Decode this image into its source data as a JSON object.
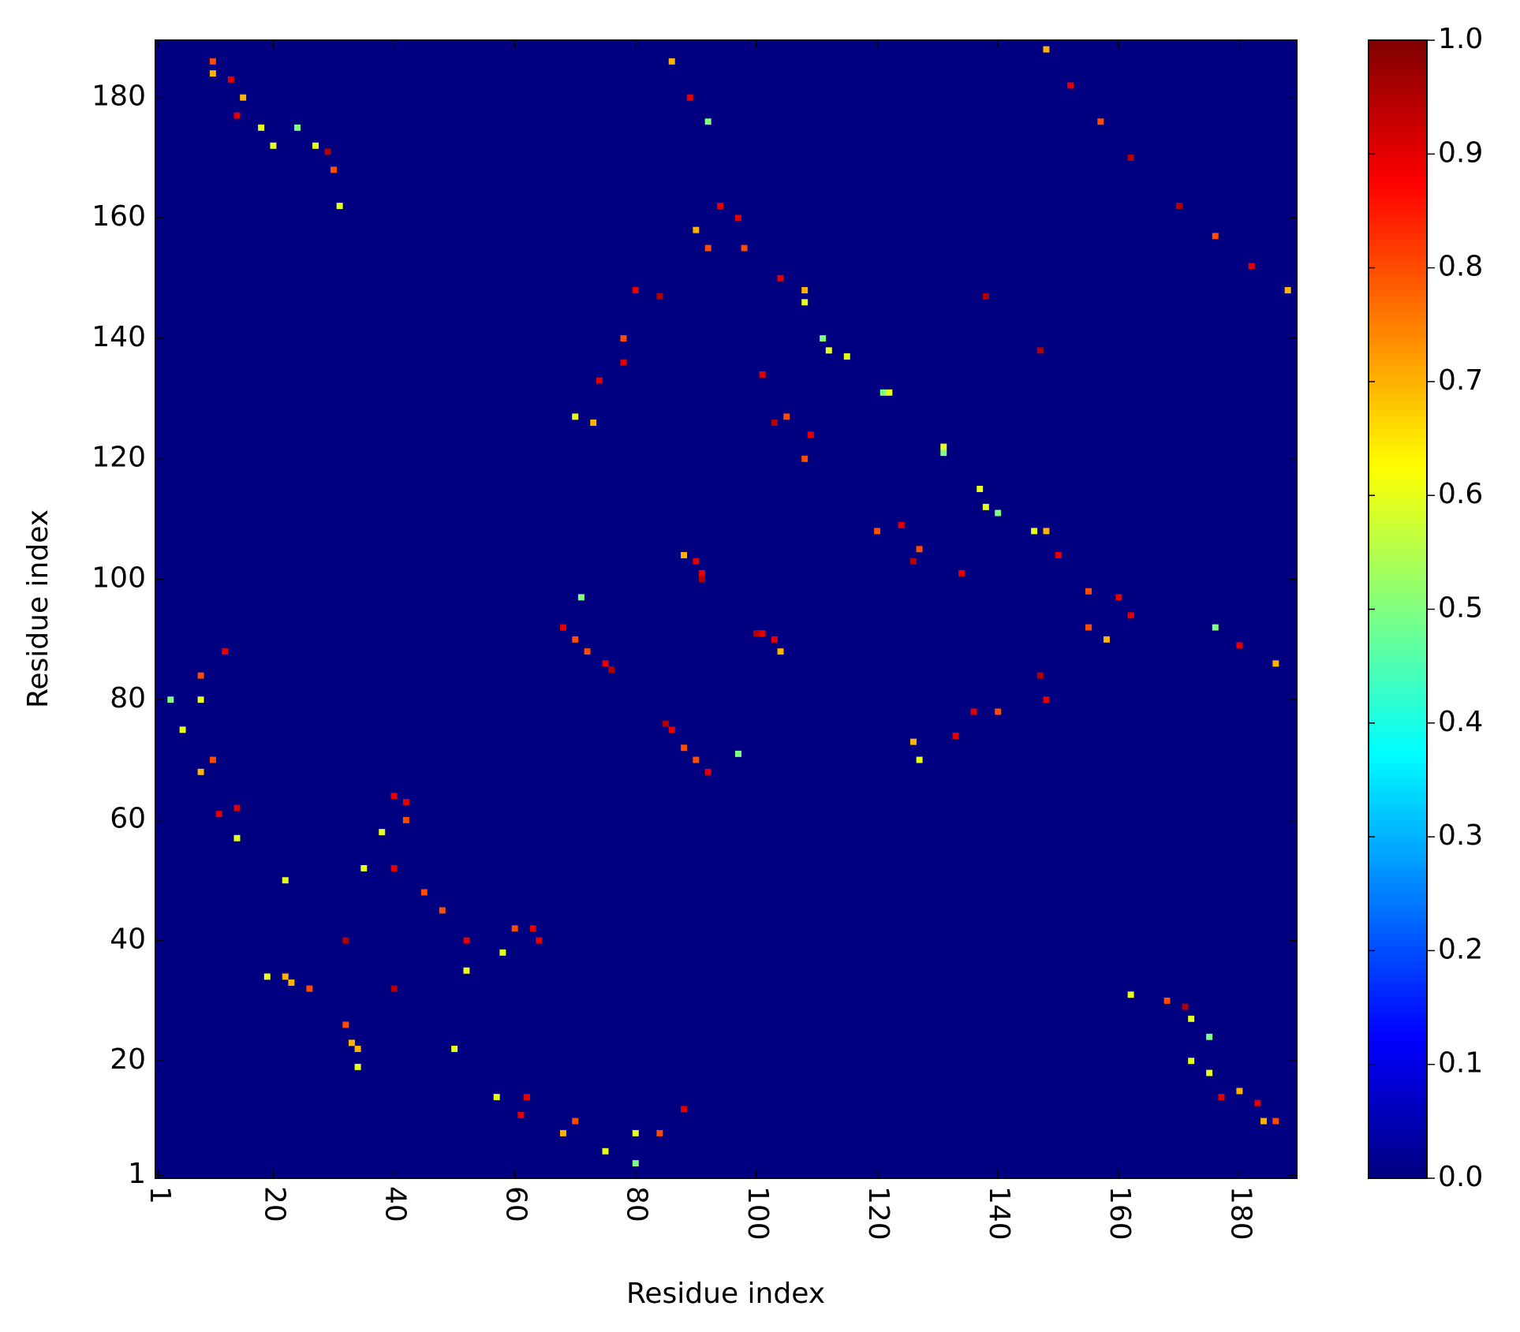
{
  "chart_data": {
    "type": "heatmap",
    "xlabel": "Residue index",
    "ylabel": "Residue index",
    "xlim": [
      0.5,
      189.5
    ],
    "ylim": [
      0.5,
      189.5
    ],
    "xticks": [
      1,
      20,
      40,
      60,
      80,
      100,
      120,
      140,
      160,
      180
    ],
    "yticks": [
      1,
      20,
      40,
      60,
      80,
      100,
      120,
      140,
      160,
      180
    ],
    "zlim": [
      0,
      1
    ],
    "zticks": [
      {
        "value": 0,
        "label": "0.0"
      },
      {
        "value": 0.1,
        "label": "0.1"
      },
      {
        "value": 0.2,
        "label": "0.2"
      },
      {
        "value": 0.3,
        "label": "0.3"
      },
      {
        "value": 0.4,
        "label": "0.4"
      },
      {
        "value": 0.5,
        "label": "0.5"
      },
      {
        "value": 0.6,
        "label": "0.6"
      },
      {
        "value": 0.7,
        "label": "0.7"
      },
      {
        "value": 0.8,
        "label": "0.8"
      },
      {
        "value": 0.9,
        "label": "0.9"
      },
      {
        "value": 1,
        "label": "1.0"
      }
    ],
    "colormap": "jet",
    "x": [
      10,
      13,
      15,
      18,
      24,
      27,
      29,
      30,
      31,
      186,
      183,
      180,
      175,
      175,
      172,
      171,
      168,
      162,
      86,
      89,
      92,
      186,
      180,
      176,
      148,
      152,
      157,
      162,
      188,
      182,
      176,
      170,
      94,
      90,
      98,
      104,
      108,
      111,
      115,
      121,
      162,
      158,
      155,
      150,
      146,
      140,
      137,
      131,
      80,
      78,
      74,
      70,
      148,
      140,
      133,
      127,
      138,
      147,
      101,
      103,
      108,
      134,
      126,
      120,
      68,
      72,
      76,
      92,
      88,
      85,
      90,
      91,
      103,
      100,
      101,
      104,
      91,
      88,
      86,
      90,
      97,
      75,
      70,
      71,
      12,
      8,
      3,
      5,
      8,
      11,
      14,
      88,
      84,
      80,
      75,
      68,
      61,
      57,
      22,
      22,
      26,
      33,
      34,
      32,
      40,
      50,
      34,
      32,
      23,
      19,
      35,
      40,
      42,
      45,
      52,
      64,
      60,
      48,
      52,
      58,
      63,
      40,
      38,
      42,
      62,
      70,
      80,
      14,
      10,
      8,
      126,
      136,
      147,
      155,
      160,
      73,
      78,
      84,
      92,
      97,
      127,
      124,
      138,
      148,
      105,
      109,
      112,
      108,
      131,
      122,
      172,
      177,
      184,
      20,
      14,
      10
    ],
    "y": [
      186,
      183,
      180,
      175,
      175,
      172,
      171,
      168,
      162,
      10,
      13,
      15,
      18,
      24,
      27,
      29,
      30,
      31,
      186,
      180,
      176,
      86,
      89,
      92,
      188,
      182,
      176,
      170,
      148,
      152,
      157,
      162,
      162,
      158,
      155,
      150,
      146,
      140,
      137,
      131,
      94,
      90,
      98,
      104,
      108,
      111,
      115,
      121,
      148,
      140,
      133,
      127,
      80,
      78,
      74,
      70,
      147,
      138,
      134,
      126,
      120,
      101,
      103,
      108,
      92,
      88,
      85,
      68,
      72,
      76,
      103,
      100,
      90,
      91,
      91,
      88,
      101,
      104,
      75,
      70,
      71,
      86,
      90,
      97,
      88,
      84,
      80,
      75,
      68,
      61,
      57,
      12,
      8,
      3,
      5,
      8,
      11,
      14,
      50,
      34,
      32,
      23,
      19,
      40,
      32,
      22,
      22,
      26,
      33,
      34,
      52,
      64,
      60,
      48,
      35,
      40,
      42,
      45,
      40,
      38,
      42,
      52,
      58,
      63,
      14,
      10,
      8,
      62,
      70,
      80,
      73,
      78,
      84,
      92,
      97,
      126,
      136,
      147,
      155,
      160,
      105,
      109,
      112,
      108,
      127,
      124,
      138,
      148,
      122,
      131,
      20,
      14,
      10,
      172,
      177,
      184
    ],
    "values": [
      0.8,
      0.9,
      0.7,
      0.6,
      0.5,
      0.6,
      0.95,
      0.8,
      0.6,
      0.8,
      0.9,
      0.7,
      0.6,
      0.5,
      0.6,
      0.95,
      0.8,
      0.6,
      0.7,
      0.9,
      0.5,
      0.7,
      0.9,
      0.5,
      0.7,
      0.9,
      0.8,
      0.95,
      0.7,
      0.9,
      0.8,
      0.95,
      0.9,
      0.7,
      0.8,
      0.9,
      0.6,
      0.5,
      0.6,
      0.5,
      0.9,
      0.7,
      0.8,
      0.9,
      0.6,
      0.5,
      0.6,
      0.5,
      0.9,
      0.8,
      0.9,
      0.6,
      0.9,
      0.8,
      0.9,
      0.6,
      0.95,
      0.95,
      0.9,
      0.95,
      0.8,
      0.9,
      0.95,
      0.8,
      0.9,
      0.8,
      0.95,
      0.9,
      0.8,
      0.95,
      0.9,
      0.95,
      0.9,
      0.95,
      0.9,
      0.7,
      0.9,
      0.7,
      0.9,
      0.8,
      0.5,
      0.9,
      0.8,
      0.5,
      0.9,
      0.8,
      0.5,
      0.6,
      0.7,
      0.9,
      0.6,
      0.9,
      0.8,
      0.5,
      0.6,
      0.7,
      0.9,
      0.6,
      0.6,
      0.7,
      0.8,
      0.7,
      0.6,
      0.95,
      0.95,
      0.6,
      0.7,
      0.8,
      0.7,
      0.6,
      0.6,
      0.9,
      0.8,
      0.8,
      0.6,
      0.9,
      0.8,
      0.8,
      0.9,
      0.6,
      0.9,
      0.9,
      0.6,
      0.9,
      0.9,
      0.8,
      0.6,
      0.9,
      0.8,
      0.6,
      0.7,
      0.9,
      0.95,
      0.8,
      0.9,
      0.7,
      0.9,
      0.95,
      0.8,
      0.9,
      0.8,
      0.9,
      0.6,
      0.7,
      0.8,
      0.9,
      0.6,
      0.7,
      0.6,
      0.6,
      0.6,
      0.9,
      0.7,
      0.6,
      0.9,
      0.7
    ]
  }
}
